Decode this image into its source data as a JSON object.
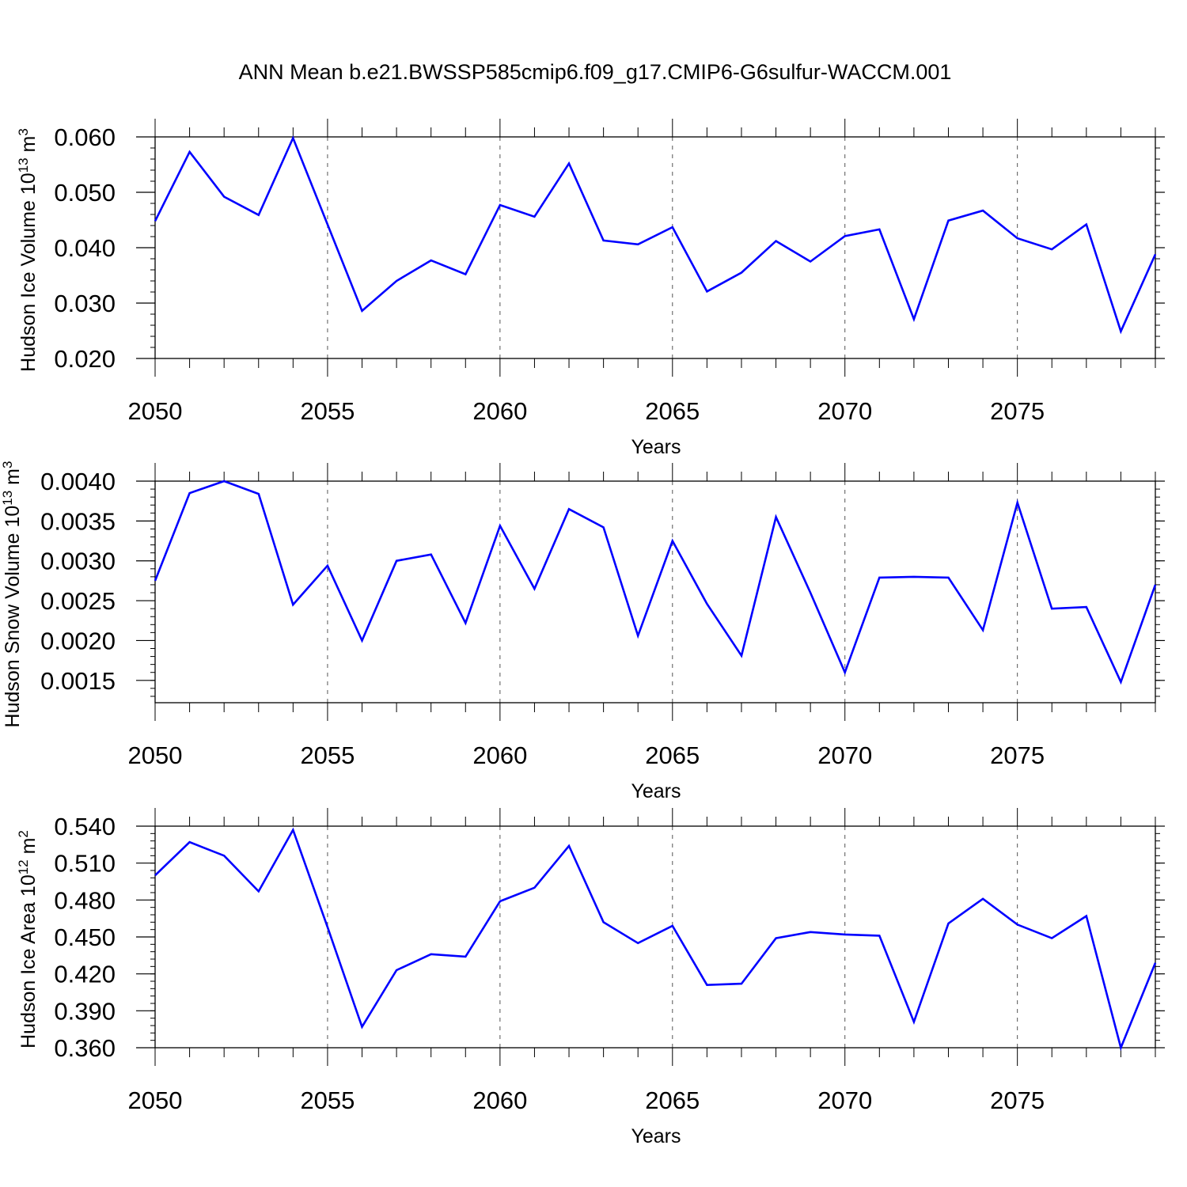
{
  "figure": {
    "title": "ANN Mean b.e21.BWSSP585cmip6.f09_g17.CMIP6-G6sulfur-WACCM.001"
  },
  "colors": {
    "line": "#0000ff",
    "axis": "#000000",
    "grid": "#555555"
  },
  "chart_data": [
    {
      "type": "line",
      "xlabel": "Years",
      "ylabel": "Hudson Ice Volume 10",
      "ylabel_exp": "13",
      "ylabel_unit": " m",
      "ylabel_unit_exp": "3",
      "xlim": [
        2050,
        2079
      ],
      "ylim": [
        0.02,
        0.06
      ],
      "x_ticks": [
        2050,
        2055,
        2060,
        2065,
        2070,
        2075
      ],
      "x_tick_labels": [
        "2050",
        "2055",
        "2060",
        "2065",
        "2070",
        "2075"
      ],
      "y_ticks": [
        0.02,
        0.03,
        0.04,
        0.05,
        0.06
      ],
      "y_tick_labels": [
        "0.020",
        "0.030",
        "0.040",
        "0.050",
        "0.060"
      ],
      "y_minor_step": 0.002,
      "grid": "vertical dashed at major x ticks",
      "x": [
        2050,
        2051,
        2052,
        2053,
        2054,
        2055,
        2056,
        2057,
        2058,
        2059,
        2060,
        2061,
        2062,
        2063,
        2064,
        2065,
        2066,
        2067,
        2068,
        2069,
        2070,
        2071,
        2072,
        2073,
        2074,
        2075,
        2076,
        2077,
        2078,
        2079
      ],
      "values": [
        0.0448,
        0.0573,
        0.0492,
        0.0459,
        0.0598,
        0.0442,
        0.0286,
        0.034,
        0.0377,
        0.0352,
        0.0477,
        0.0456,
        0.0552,
        0.0413,
        0.0406,
        0.0437,
        0.0321,
        0.0355,
        0.0412,
        0.0375,
        0.0421,
        0.0433,
        0.0271,
        0.0449,
        0.0467,
        0.0417,
        0.0397,
        0.0442,
        0.0249,
        0.0388
      ]
    },
    {
      "type": "line",
      "xlabel": "Years",
      "ylabel": "Hudson Snow Volume 10",
      "ylabel_exp": "13",
      "ylabel_unit": " m",
      "ylabel_unit_exp": "3",
      "xlim": [
        2050,
        2079
      ],
      "ylim": [
        0.00122,
        0.004
      ],
      "x_ticks": [
        2050,
        2055,
        2060,
        2065,
        2070,
        2075
      ],
      "x_tick_labels": [
        "2050",
        "2055",
        "2060",
        "2065",
        "2070",
        "2075"
      ],
      "y_ticks": [
        0.0015,
        0.002,
        0.0025,
        0.003,
        0.0035,
        0.004
      ],
      "y_tick_labels": [
        "0.0015",
        "0.0020",
        "0.0025",
        "0.0030",
        "0.0035",
        "0.0040"
      ],
      "y_minor_step": 0.0001,
      "grid": "vertical dashed at major x ticks",
      "x": [
        2050,
        2051,
        2052,
        2053,
        2054,
        2055,
        2056,
        2057,
        2058,
        2059,
        2060,
        2061,
        2062,
        2063,
        2064,
        2065,
        2066,
        2067,
        2068,
        2069,
        2070,
        2071,
        2072,
        2073,
        2074,
        2075,
        2076,
        2077,
        2078,
        2079
      ],
      "values": [
        0.00275,
        0.00385,
        0.004,
        0.00384,
        0.00245,
        0.00294,
        0.002,
        0.003,
        0.00308,
        0.00222,
        0.00344,
        0.00265,
        0.00365,
        0.00342,
        0.00206,
        0.00325,
        0.00246,
        0.00181,
        0.00355,
        0.0026,
        0.0016,
        0.00279,
        0.0028,
        0.00279,
        0.00213,
        0.00373,
        0.0024,
        0.00242,
        0.00148,
        0.0027
      ]
    },
    {
      "type": "line",
      "xlabel": "Years",
      "ylabel": "Hudson Ice Area 10",
      "ylabel_exp": "12",
      "ylabel_unit": " m",
      "ylabel_unit_exp": "2",
      "xlim": [
        2050,
        2079
      ],
      "ylim": [
        0.36,
        0.54
      ],
      "x_ticks": [
        2050,
        2055,
        2060,
        2065,
        2070,
        2075
      ],
      "x_tick_labels": [
        "2050",
        "2055",
        "2060",
        "2065",
        "2070",
        "2075"
      ],
      "y_ticks": [
        0.36,
        0.39,
        0.42,
        0.45,
        0.48,
        0.51,
        0.54
      ],
      "y_tick_labels": [
        "0.360",
        "0.390",
        "0.420",
        "0.450",
        "0.480",
        "0.510",
        "0.540"
      ],
      "y_minor_step": 0.006,
      "grid": "vertical dashed at major x ticks",
      "x": [
        2050,
        2051,
        2052,
        2053,
        2054,
        2055,
        2056,
        2057,
        2058,
        2059,
        2060,
        2061,
        2062,
        2063,
        2064,
        2065,
        2066,
        2067,
        2068,
        2069,
        2070,
        2071,
        2072,
        2073,
        2074,
        2075,
        2076,
        2077,
        2078,
        2079
      ],
      "values": [
        0.5,
        0.527,
        0.516,
        0.487,
        0.537,
        0.458,
        0.377,
        0.423,
        0.436,
        0.434,
        0.479,
        0.49,
        0.524,
        0.462,
        0.445,
        0.459,
        0.411,
        0.412,
        0.449,
        0.454,
        0.452,
        0.451,
        0.381,
        0.461,
        0.481,
        0.46,
        0.449,
        0.467,
        0.36,
        0.429
      ]
    }
  ]
}
